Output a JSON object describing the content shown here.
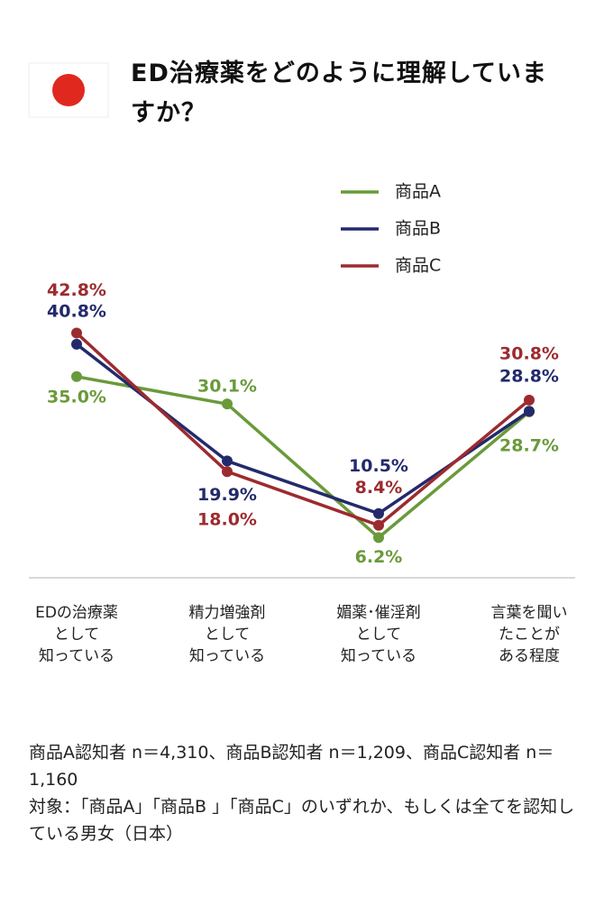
{
  "chart_data": {
    "type": "line",
    "title": "ED治療薬をどのように理解していますか？",
    "categories": [
      "EDの治療薬\nとして\n知っている",
      "精力増強剤\nとして\n知っている",
      "媚薬･催淫剤\nとして\n知っている",
      "言葉を聞い\nたことが\nある程度"
    ],
    "series": [
      {
        "name": "商品A",
        "color": "#6a9a3a",
        "values": [
          35.0,
          30.1,
          6.2,
          28.7
        ],
        "value_labels": [
          "35.0%",
          "30.1%",
          "6.2%",
          "28.7%"
        ]
      },
      {
        "name": "商品B",
        "color": "#232a6b",
        "values": [
          40.8,
          19.9,
          10.5,
          28.8
        ],
        "value_labels": [
          "40.8%",
          "19.9%",
          "10.5%",
          "28.8%"
        ]
      },
      {
        "name": "商品C",
        "color": "#9c2b2f",
        "values": [
          42.8,
          18.0,
          8.4,
          30.8
        ],
        "value_labels": [
          "42.8%",
          "18.0%",
          "8.4%",
          "30.8%"
        ]
      }
    ],
    "ylim": [
      -1,
      54
    ],
    "legend": "top-right",
    "notes": [
      "商品A認知者 n＝4,310、商品B認知者 n＝1,209、商品C認知者 n＝1,160",
      "対象：「商品A」「商品B 」「商品C」のいずれか、もしくは全てを認知している男女（日本）"
    ]
  }
}
